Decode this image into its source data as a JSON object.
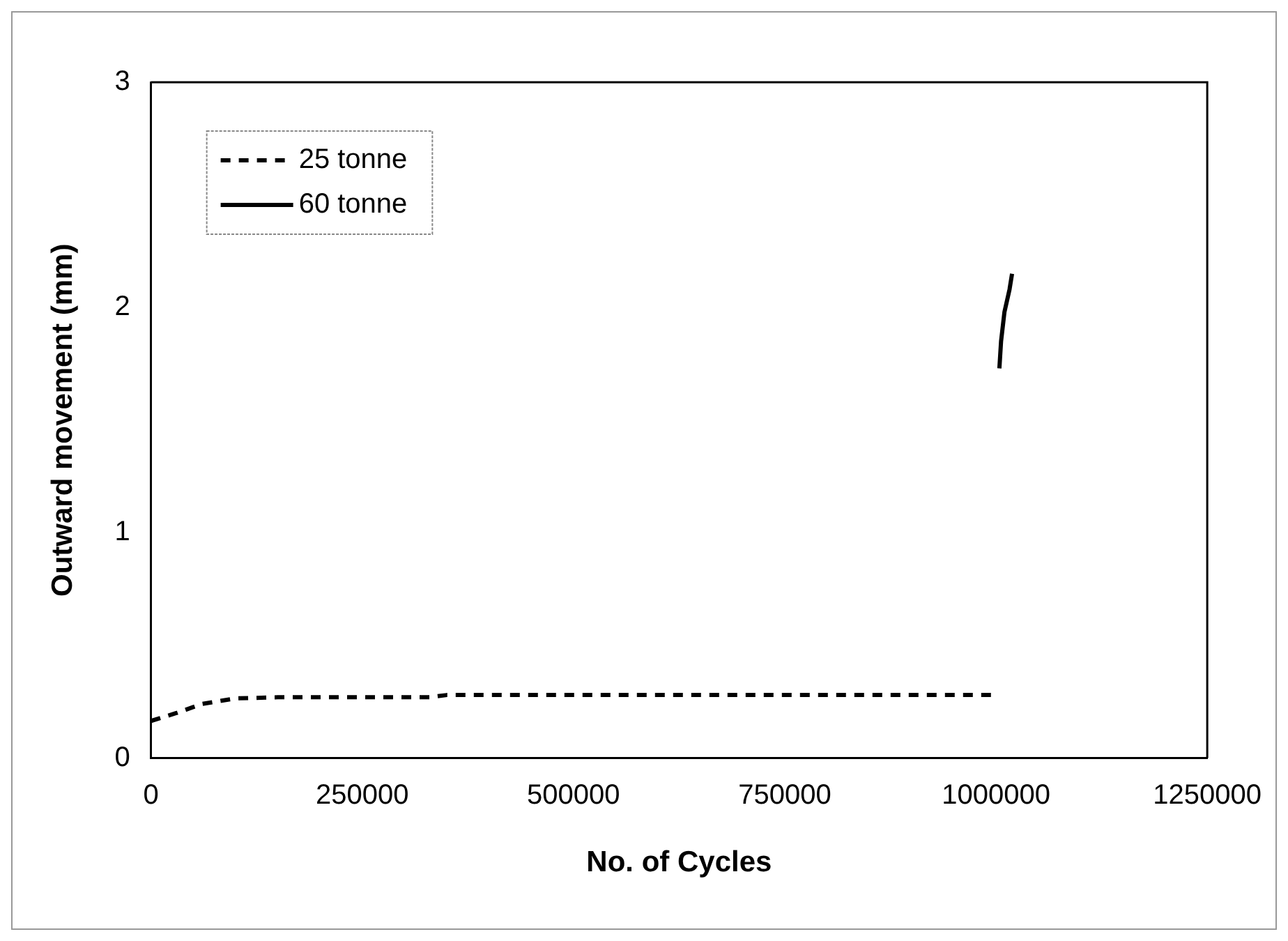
{
  "chart_data": {
    "type": "line",
    "xlabel": "No. of Cycles",
    "ylabel": "Outward movement (mm)",
    "xlim": [
      0,
      1250000
    ],
    "xticks": [
      0,
      250000,
      500000,
      750000,
      1000000,
      1250000
    ],
    "ylim": [
      0,
      3
    ],
    "yticks": [
      0,
      1,
      2,
      3
    ],
    "legend": "top left",
    "series": [
      {
        "name": "25 tonne",
        "color": "#000000",
        "line_style": "dashed",
        "x": [
          0,
          30000,
          60000,
          100000,
          150000,
          250000,
          330000,
          350000,
          500000,
          750000,
          1000000
        ],
        "values": [
          0.165,
          0.2,
          0.24,
          0.265,
          0.27,
          0.27,
          0.27,
          0.28,
          0.28,
          0.28,
          0.28
        ]
      },
      {
        "name": "60 tonne",
        "color": "#000000",
        "line_style": "solid",
        "x": [
          1004000,
          1006000,
          1010000,
          1016000,
          1019000
        ],
        "values": [
          1.73,
          1.85,
          1.98,
          2.08,
          2.15
        ]
      }
    ]
  }
}
